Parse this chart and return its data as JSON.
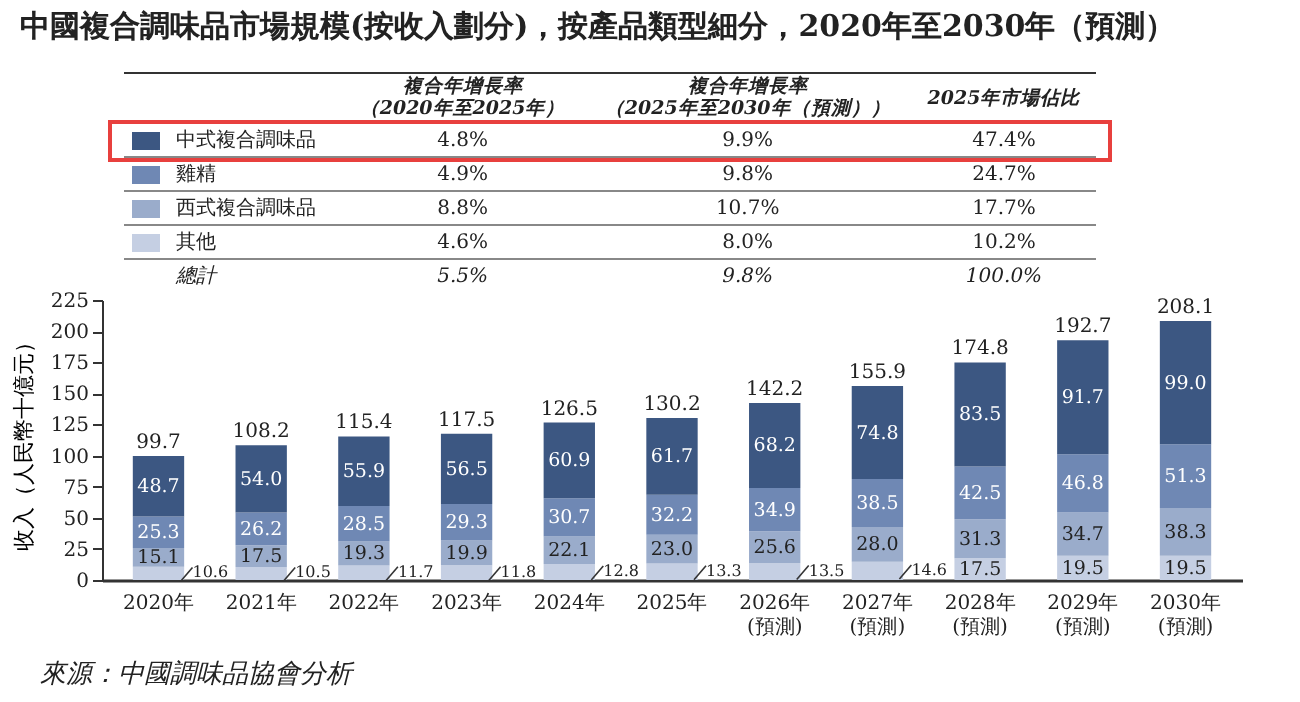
{
  "chart_data": {
    "type": "bar",
    "stacked": true,
    "title": "中國複合調味品市場規模(按收入劃分)，按產品類型細分，2020年至2030年（預測）",
    "ylabel": "收入（人民幣十億元）",
    "categories": [
      "2020年",
      "2021年",
      "2022年",
      "2023年",
      "2024年",
      "2025年",
      "2026年\n(預測)",
      "2027年\n(預測)",
      "2028年\n(預測)",
      "2029年\n(預測)",
      "2030年\n(預測)"
    ],
    "series": [
      {
        "name": "其他",
        "color": "#c5cfe3",
        "values": [
          10.6,
          10.5,
          11.7,
          11.8,
          12.8,
          13.3,
          13.5,
          14.6,
          17.5,
          19.5,
          19.5
        ],
        "value_labels": [
          "10.6",
          "10.5",
          "11.7",
          "11.8",
          "12.8",
          "13.3",
          "13.5",
          "14.6",
          "17.5",
          "19.5",
          "19.5"
        ]
      },
      {
        "name": "西式複合調味品",
        "color": "#9aaccb",
        "values": [
          15.1,
          17.5,
          19.3,
          19.9,
          22.1,
          23.0,
          25.6,
          28.0,
          31.3,
          34.7,
          38.3
        ],
        "value_labels": [
          "15.1",
          "17.5",
          "19.3",
          "19.9",
          "22.1",
          "23.0",
          "25.6",
          "28.0",
          "31.3",
          "34.7",
          "38.3"
        ]
      },
      {
        "name": "雞精",
        "color": "#6f88b4",
        "values": [
          25.3,
          26.2,
          28.5,
          29.3,
          30.7,
          32.2,
          34.9,
          38.5,
          42.5,
          46.8,
          51.3
        ],
        "value_labels": [
          "25.3",
          "26.2",
          "28.5",
          "29.3",
          "30.7",
          "32.2",
          "34.9",
          "38.5",
          "42.5",
          "46.8",
          "51.3"
        ]
      },
      {
        "name": "中式複合調味品",
        "color": "#3c5782",
        "values": [
          48.7,
          54.0,
          55.9,
          56.5,
          60.9,
          61.7,
          68.2,
          74.8,
          83.5,
          91.7,
          99.0
        ],
        "value_labels": [
          "48.7",
          "54.0",
          "55.9",
          "56.5",
          "60.9",
          "61.7",
          "68.2",
          "74.8",
          "83.5",
          "91.7",
          "99.0"
        ]
      }
    ],
    "totals": [
      "99.7",
      "108.2",
      "115.4",
      "117.5",
      "126.5",
      "130.2",
      "142.2",
      "155.9",
      "174.8",
      "192.7",
      "208.1"
    ],
    "legend": "top",
    "ylim": [
      0,
      225
    ],
    "yticks": [
      0,
      25,
      50,
      75,
      100,
      125,
      150,
      175,
      200,
      225
    ],
    "grid": false,
    "annotations": [
      "複合年增長率",
      "（2020年至2025年）",
      "複合年增長率",
      "（2025年至2030年（預測））",
      "2025年市場佔比",
      "4.8%",
      "9.9%",
      "47.4%",
      "4.9%",
      "9.8%",
      "24.7%",
      "8.8%",
      "10.7%",
      "17.7%",
      "4.6%",
      "8.0%",
      "10.2%",
      "總計",
      "5.5%",
      "9.8%",
      "100.0%",
      "來源：中國調味品協會分析"
    ]
  }
}
